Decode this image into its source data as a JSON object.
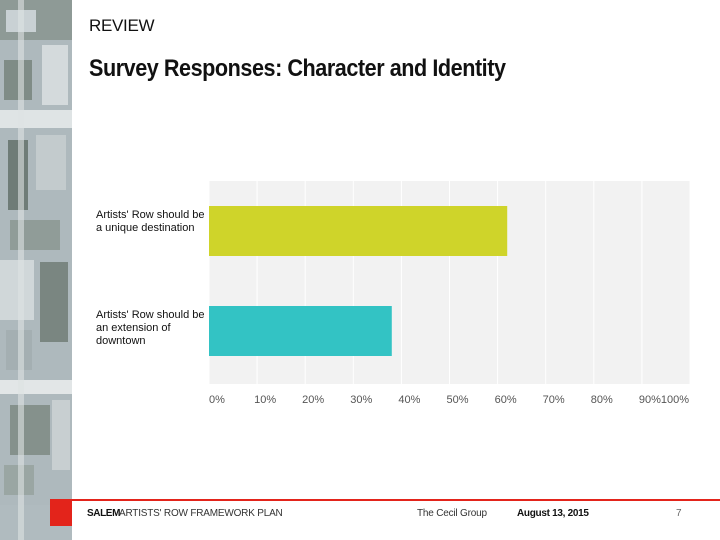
{
  "header": {
    "section": "REVIEW",
    "title": "Survey Responses: Character and Identity"
  },
  "colors": {
    "series_1": "#cfd42a",
    "series_2": "#33c3c4",
    "plot_background": "#f2f2f2",
    "grid": "#ffffff",
    "accent": "#e3241b"
  },
  "chart_data": {
    "type": "bar",
    "orientation": "horizontal",
    "categories": [
      "Artists' Row should be a unique destination",
      "Artists' Row should be an extension of downtown"
    ],
    "values": [
      62,
      38
    ],
    "unit": "%",
    "xlim": [
      0,
      100
    ],
    "x_ticks": [
      "0%",
      "10%",
      "20%",
      "30%",
      "40%",
      "50%",
      "60%",
      "70%",
      "80%",
      "90%",
      "100%"
    ],
    "grid": true,
    "legend": "none"
  },
  "footer": {
    "city": "SALEM",
    "plan": "ARTISTS' ROW FRAMEWORK PLAN",
    "firm": "The Cecil Group",
    "date": "August 13, 2015",
    "page": "7"
  }
}
